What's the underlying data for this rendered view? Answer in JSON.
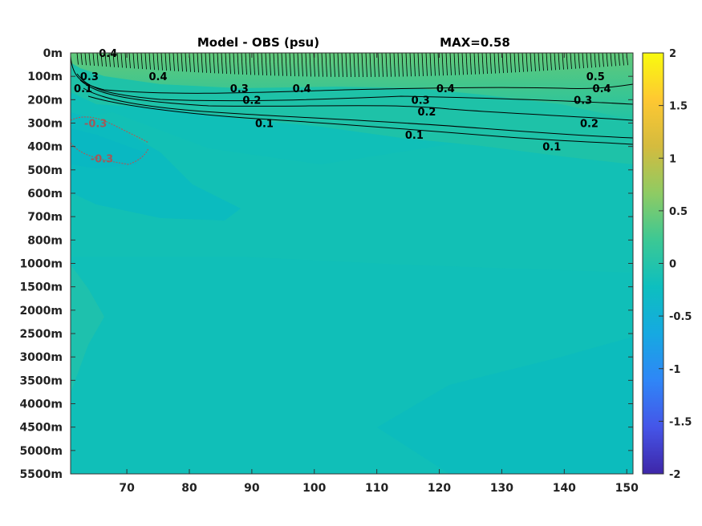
{
  "chart_data": {
    "type": "heatmap",
    "title": "Model - OBS (psu)",
    "subtitle": "MAX=0.58",
    "xlabel": "",
    "ylabel": "",
    "x_ticks": [
      "70",
      "80",
      "90",
      "100",
      "110",
      "120",
      "130",
      "140",
      "150"
    ],
    "xlim": [
      61,
      151
    ],
    "y_ticks": [
      "0m",
      "100m",
      "200m",
      "300m",
      "400m",
      "500m",
      "600m",
      "700m",
      "800m",
      "1000m",
      "1500m",
      "2000m",
      "2500m",
      "3000m",
      "3500m",
      "4000m",
      "4500m",
      "5000m",
      "5500m"
    ],
    "colorbar": {
      "range": [
        -2,
        2
      ],
      "ticks": [
        "2",
        "1.5",
        "1",
        "0.5",
        "0",
        "-0.5",
        "-1",
        "-1.5",
        "-2"
      ],
      "colors": [
        "#3e26a8",
        "#4555e8",
        "#2f86f7",
        "#16a9e1",
        "#0dbfbf",
        "#3cc894",
        "#8fcb63",
        "#d4bb3e",
        "#fec832",
        "#f9fb0e"
      ]
    },
    "contour_labels": [
      {
        "text": "0.4",
        "x": 67,
        "depth": "0m"
      },
      {
        "text": "0.4",
        "x": 75,
        "depth": "100m"
      },
      {
        "text": "0.3",
        "x": 64,
        "depth": "100m"
      },
      {
        "text": "0.1",
        "x": 63,
        "depth": "150m"
      },
      {
        "text": "0.3",
        "x": 88,
        "depth": "150m"
      },
      {
        "text": "0.2",
        "x": 90,
        "depth": "200m"
      },
      {
        "text": "0.1",
        "x": 92,
        "depth": "300m"
      },
      {
        "text": "0.4",
        "x": 98,
        "depth": "150m"
      },
      {
        "text": "0.3",
        "x": 117,
        "depth": "200m"
      },
      {
        "text": "0.2",
        "x": 118,
        "depth": "250m"
      },
      {
        "text": "0.1",
        "x": 116,
        "depth": "350m"
      },
      {
        "text": "0.4",
        "x": 121,
        "depth": "150m"
      },
      {
        "text": "0.5",
        "x": 145,
        "depth": "100m"
      },
      {
        "text": "0.4",
        "x": 146,
        "depth": "150m"
      },
      {
        "text": "0.3",
        "x": 143,
        "depth": "200m"
      },
      {
        "text": "0.2",
        "x": 144,
        "depth": "300m"
      },
      {
        "text": "0.1",
        "x": 138,
        "depth": "400m"
      },
      {
        "text": "-0.3",
        "x": 65,
        "depth": "300m"
      },
      {
        "text": "-0.3",
        "x": 66,
        "depth": "450m"
      }
    ]
  }
}
